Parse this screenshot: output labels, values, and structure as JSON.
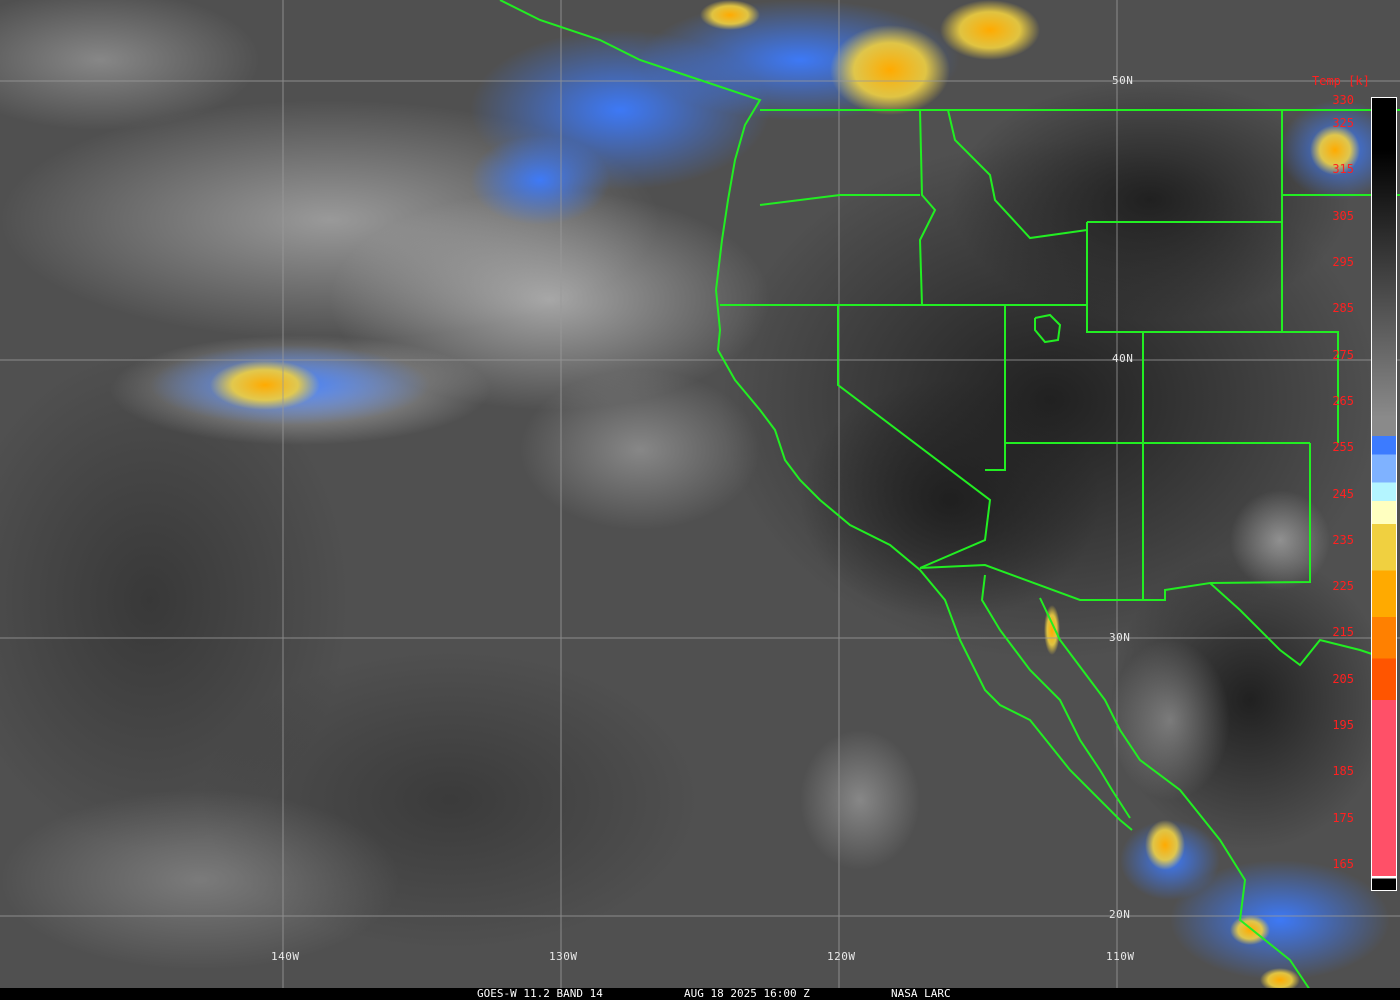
{
  "footer": {
    "satellite_band": "GOES-W 11.2 BAND 14",
    "datetime": "AUG 18 2025 16:00 Z",
    "source": "NASA LARC"
  },
  "latitude_labels": [
    "50N",
    "40N",
    "30N",
    "20N"
  ],
  "longitude_labels": [
    "140W",
    "130W",
    "120W",
    "110W"
  ],
  "colorbar": {
    "title": "Temp [k]",
    "tick_labels": [
      "330",
      "325",
      "315",
      "305",
      "295",
      "285",
      "275",
      "265",
      "255",
      "245",
      "235",
      "225",
      "215",
      "205",
      "195",
      "185",
      "175",
      "165"
    ],
    "colors": {
      "warm_top": "#000000",
      "gray_mid": "#8a8a8a",
      "blue": "#3c7bff",
      "light_blue": "#7fb2ff",
      "cyan": "#b4f5ff",
      "pale_yellow": "#ffffc0",
      "yellow": "#f0d040",
      "orange": "#ffaa00",
      "dark_orange": "#ff8000",
      "red_orange": "#ff5500",
      "pink": "#ff5068"
    }
  },
  "map_colors": {
    "boundaries": "#22ee22",
    "grid": "#9a9a9a",
    "label_text": "#ff2020"
  }
}
